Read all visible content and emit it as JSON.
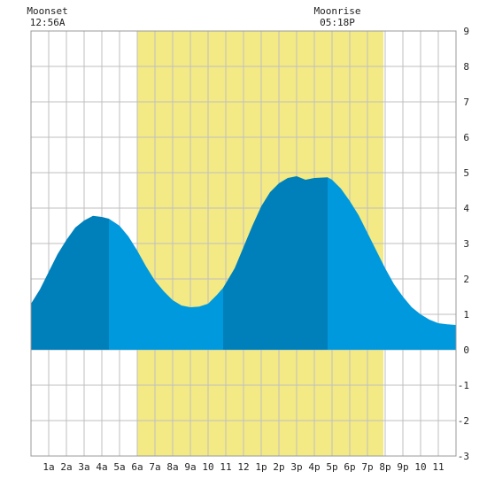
{
  "chart_data": {
    "type": "area",
    "title": "",
    "xlabel": "",
    "ylabel": "",
    "xlim": [
      0,
      24
    ],
    "ylim": [
      -3,
      9
    ],
    "grid": true,
    "x_tick_labels": [
      "1a",
      "2a",
      "3a",
      "4a",
      "5a",
      "6a",
      "7a",
      "8a",
      "9a",
      "10",
      "11",
      "12",
      "1p",
      "2p",
      "3p",
      "4p",
      "5p",
      "6p",
      "7p",
      "8p",
      "9p",
      "10",
      "11"
    ],
    "y_ticks": [
      -3,
      -2,
      -1,
      0,
      1,
      2,
      3,
      4,
      5,
      6,
      7,
      8,
      9
    ],
    "daylight": {
      "start": 6.0,
      "end": 19.9,
      "color": "#f3ea85"
    },
    "moon_events": [
      {
        "label": "Moonset",
        "time": "12:56A",
        "x": 0.93
      },
      {
        "label": "Moonrise",
        "time": "05:18P",
        "x": 17.3
      }
    ],
    "series": [
      {
        "x": [
          0,
          0.5,
          1,
          1.5,
          2,
          2.5,
          3,
          3.5,
          4,
          4.4,
          5,
          5.5,
          6,
          6.5,
          7,
          7.5,
          8,
          8.5,
          9,
          9.5,
          10,
          10.5,
          10.85,
          11.5,
          12,
          12.5,
          13,
          13.5,
          14,
          14.5,
          15,
          15.5,
          16,
          16.75,
          17,
          17.5,
          18,
          18.5,
          19,
          19.5,
          20,
          20.5,
          21,
          21.5,
          22,
          22.5,
          23,
          23.5,
          24
        ],
        "values": [
          1.3,
          1.7,
          2.2,
          2.7,
          3.1,
          3.45,
          3.65,
          3.78,
          3.75,
          3.7,
          3.5,
          3.2,
          2.8,
          2.35,
          1.95,
          1.65,
          1.4,
          1.25,
          1.2,
          1.22,
          1.3,
          1.55,
          1.75,
          2.3,
          2.9,
          3.5,
          4.05,
          4.45,
          4.7,
          4.85,
          4.9,
          4.8,
          4.85,
          4.87,
          4.8,
          4.55,
          4.2,
          3.8,
          3.3,
          2.8,
          2.3,
          1.85,
          1.5,
          1.2,
          1.0,
          0.85,
          0.75,
          0.72,
          0.7
        ]
      }
    ],
    "segments": [
      {
        "from": 0,
        "to": 4.4,
        "color": "#0080bb"
      },
      {
        "from": 4.4,
        "to": 10.85,
        "color": "#0099dd"
      },
      {
        "from": 10.85,
        "to": 16.75,
        "color": "#0080bb"
      },
      {
        "from": 16.75,
        "to": 24,
        "color": "#0099dd"
      }
    ]
  },
  "colors": {
    "grid": "#bfbfbf",
    "axis_frame": "#999999",
    "tide_dark": "#0080bb",
    "tide_light": "#0099dd"
  }
}
